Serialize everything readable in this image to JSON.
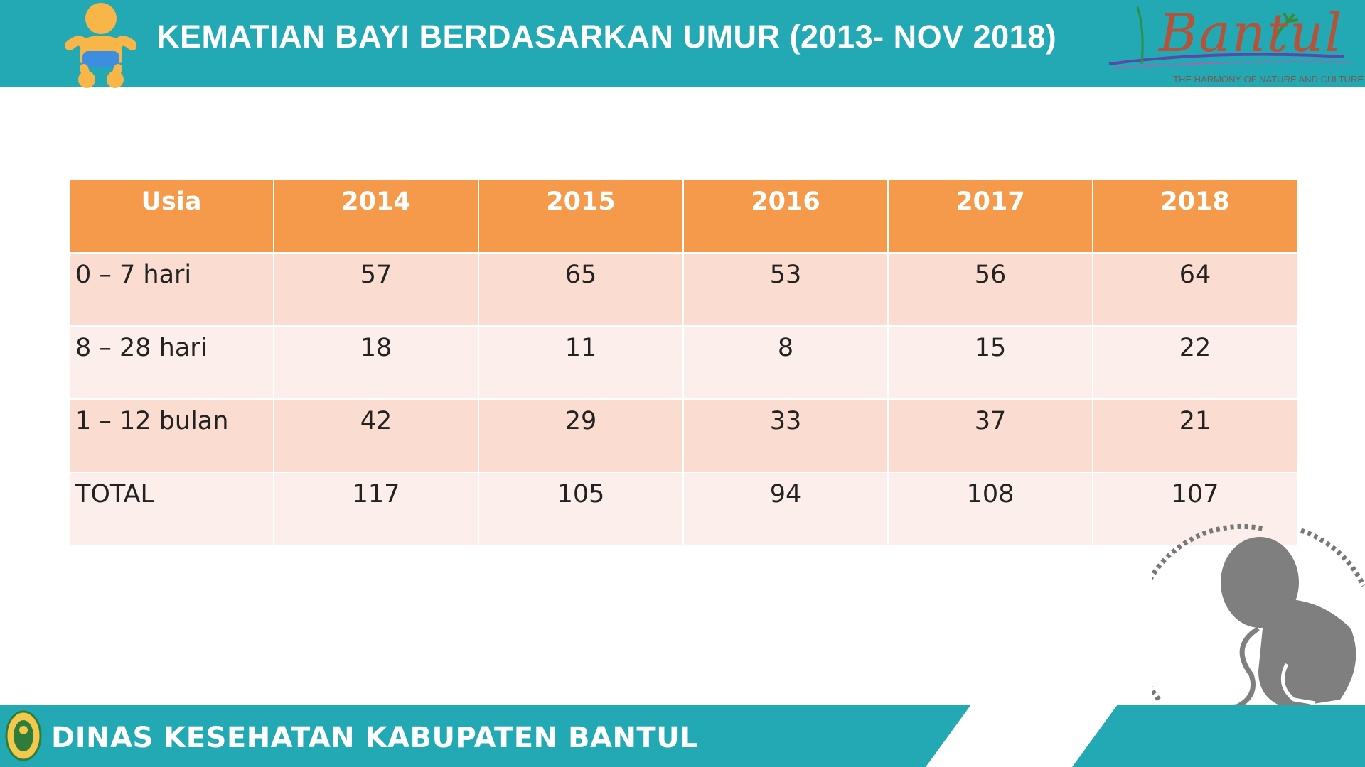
{
  "header": {
    "title": "KEMATIAN BAYI BERDASARKAN UMUR (2013- NOV 2018)",
    "logo_script": "Bantul",
    "logo_tagline": "THE HARMONY OF NATURE AND CULTURE"
  },
  "table": {
    "headers": [
      "Usia",
      "2014",
      "2015",
      "2016",
      "2017",
      "2018"
    ],
    "rows": [
      {
        "label": "0 – 7 hari",
        "values": [
          "57",
          "65",
          "53",
          "56",
          "64"
        ]
      },
      {
        "label": "8 – 28 hari",
        "values": [
          "18",
          "11",
          "8",
          "15",
          "22"
        ]
      },
      {
        "label": "1 – 12 bulan",
        "values": [
          "42",
          "29",
          "33",
          "37",
          "21"
        ]
      },
      {
        "label": "TOTAL",
        "values": [
          "117",
          "105",
          "94",
          "108",
          "107"
        ]
      }
    ]
  },
  "footer": {
    "text": "DINAS KESEHATAN KABUPATEN BANTUL"
  },
  "colors": {
    "teal": "#22a9b3",
    "header_orange": "#f59a4a",
    "row_dark": "#fbdcd0",
    "row_light": "#fcefeb"
  },
  "icons": {
    "header_left": "baby-icon",
    "bottom_right": "fetus-icon",
    "footer_left": "emblem-icon"
  }
}
